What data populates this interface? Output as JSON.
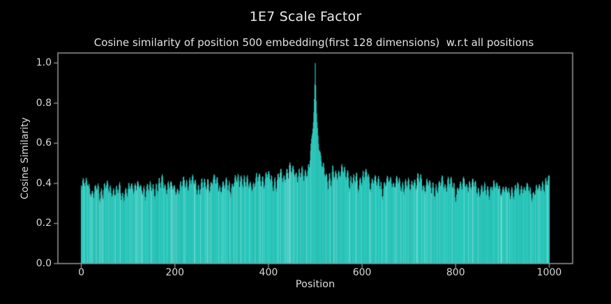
{
  "figure": {
    "colors": {
      "background": "#000000",
      "series": "#2fd2c6",
      "series_light": "#7ae8df",
      "spine": "#8f8f8f",
      "tick_mark": "#8f8f8f",
      "title_text": "#eaeaea",
      "label_text": "#dcdcdc"
    }
  },
  "chart_data": {
    "type": "line",
    "title": "1E7 Scale Factor",
    "subtitle": "Cosine similarity of position 500 embedding(first 128 dimensions)  w.r.t all positions",
    "xlabel": "Position",
    "ylabel": "Cosine Similarity",
    "x_ticks": [
      0,
      200,
      400,
      600,
      800,
      1000
    ],
    "y_ticks": [
      0.0,
      0.2,
      0.4,
      0.6,
      0.8,
      1.0
    ],
    "y_tick_labels": [
      "0.0",
      "0.2",
      "0.4",
      "0.6",
      "0.8",
      "1.0"
    ],
    "xlim": [
      -50,
      1050
    ],
    "ylim": [
      0,
      1.05
    ],
    "x_min": 0,
    "x_max": 1000,
    "n_points": 1001,
    "peak": {
      "x": 500,
      "y": 1.0
    },
    "symmetric_about": 500,
    "envelope": {
      "distance_from_500": [
        0,
        1,
        2,
        3,
        4,
        6,
        8,
        11,
        15,
        20,
        30,
        50,
        80,
        120,
        200,
        300,
        380,
        440,
        480,
        500
      ],
      "similarity": [
        1.0,
        0.9,
        0.83,
        0.77,
        0.73,
        0.68,
        0.64,
        0.58,
        0.555,
        0.545,
        0.53,
        0.52,
        0.5,
        0.485,
        0.47,
        0.46,
        0.44,
        0.43,
        0.45,
        0.46
      ]
    },
    "oscillation_band": {
      "typical_top_min": 0.27,
      "fill_bottom": 0.0,
      "description": "dense line: value oscillates rapidly between ~0.27 and the upper envelope at every position, filling down to 0; sharp spike to 1.0 at position 500"
    },
    "render": {
      "seed": 9,
      "components": [
        {
          "period": 6.5,
          "weight": 0.45,
          "phase": 0.8
        },
        {
          "period": 23.0,
          "weight": 0.3,
          "phase": 2.1
        },
        {
          "period": 55.0,
          "weight": 0.25,
          "phase": 4.0
        }
      ],
      "max_dip_fraction": 0.38,
      "spike_clean_radius": 16,
      "min_top": 0.23
    }
  }
}
